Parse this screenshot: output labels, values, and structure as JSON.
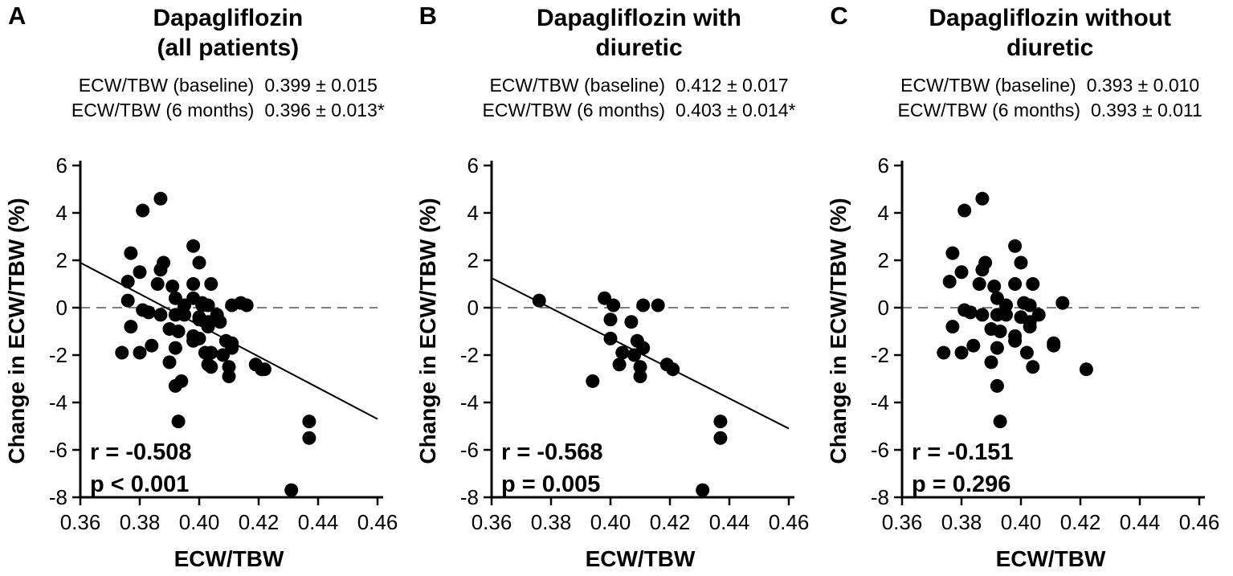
{
  "figure": {
    "background_color": "#ffffff",
    "foreground_color": "#000000",
    "zero_line_color": "#555555",
    "panels": [
      {
        "letter": "A",
        "title_lines": [
          "Dapagliflozin",
          "(all patients)"
        ],
        "stats": [
          {
            "label": "ECW/TBW (baseline)",
            "value": "0.399 ± 0.015"
          },
          {
            "label": "ECW/TBW (6 months)",
            "value": "0.396 ± 0.013*"
          }
        ]
      },
      {
        "letter": "B",
        "title_lines": [
          "Dapagliflozin with",
          "diuretic"
        ],
        "stats": [
          {
            "label": "ECW/TBW (baseline)",
            "value": "0.412 ± 0.017"
          },
          {
            "label": "ECW/TBW (6 months)",
            "value": "0.403 ± 0.014*"
          }
        ]
      },
      {
        "letter": "C",
        "title_lines": [
          "Dapagliflozin without",
          "diuretic"
        ],
        "stats": [
          {
            "label": "ECW/TBW (baseline)",
            "value": "0.393 ± 0.010"
          },
          {
            "label": "ECW/TBW (6 months)",
            "value": "0.393 ± 0.011"
          }
        ]
      }
    ]
  },
  "chart_data": [
    {
      "type": "scatter",
      "panel": "A",
      "title": "Dapagliflozin (all patients)",
      "xlabel": "ECW/TBW",
      "ylabel": "Change in ECW/TBW (%)",
      "xlim": [
        0.36,
        0.46
      ],
      "ylim": [
        -8,
        6
      ],
      "xticks": [
        0.36,
        0.38,
        0.4,
        0.42,
        0.44,
        0.46
      ],
      "xtick_labels": [
        "0.36",
        "0.38",
        "0.40",
        "0.42",
        "0.44",
        "0.46"
      ],
      "yticks": [
        6,
        4,
        2,
        0,
        -2,
        -4,
        -6,
        -8
      ],
      "ytick_labels": [
        "6",
        "4",
        "2",
        "0",
        "-2",
        "-4",
        "-6",
        "-8"
      ],
      "grid": false,
      "zero_dashed_line": true,
      "annotation": {
        "r": "r = -0.508",
        "p": "p < 0.001"
      },
      "regression_line": {
        "x": [
          0.36,
          0.46
        ],
        "y": [
          1.9,
          -4.7
        ]
      },
      "points": [
        [
          0.376,
          0.3
        ],
        [
          0.398,
          0.4
        ],
        [
          0.401,
          0.1
        ],
        [
          0.411,
          0.1
        ],
        [
          0.416,
          0.1
        ],
        [
          0.4,
          -0.5
        ],
        [
          0.407,
          -0.6
        ],
        [
          0.4,
          -1.3
        ],
        [
          0.409,
          -1.4
        ],
        [
          0.411,
          -1.7
        ],
        [
          0.404,
          -1.9
        ],
        [
          0.408,
          -2.0
        ],
        [
          0.403,
          -2.4
        ],
        [
          0.41,
          -2.5
        ],
        [
          0.41,
          -2.9
        ],
        [
          0.419,
          -2.4
        ],
        [
          0.421,
          -2.6
        ],
        [
          0.394,
          -3.1
        ],
        [
          0.437,
          -4.8
        ],
        [
          0.437,
          -5.5
        ],
        [
          0.431,
          -7.7
        ],
        [
          0.381,
          4.1
        ],
        [
          0.387,
          4.6
        ],
        [
          0.377,
          2.3
        ],
        [
          0.398,
          2.6
        ],
        [
          0.4,
          1.9
        ],
        [
          0.388,
          1.9
        ],
        [
          0.387,
          1.6
        ],
        [
          0.38,
          1.5
        ],
        [
          0.376,
          1.1
        ],
        [
          0.386,
          1.0
        ],
        [
          0.398,
          1.0
        ],
        [
          0.404,
          1.0
        ],
        [
          0.391,
          0.9
        ],
        [
          0.392,
          0.4
        ],
        [
          0.395,
          0.1
        ],
        [
          0.401,
          0.2
        ],
        [
          0.403,
          0.1
        ],
        [
          0.414,
          0.2
        ],
        [
          0.381,
          -0.1
        ],
        [
          0.383,
          -0.2
        ],
        [
          0.387,
          -0.3
        ],
        [
          0.392,
          -0.3
        ],
        [
          0.395,
          -0.3
        ],
        [
          0.406,
          -0.3
        ],
        [
          0.4,
          -0.4
        ],
        [
          0.403,
          -0.6
        ],
        [
          0.377,
          -0.8
        ],
        [
          0.403,
          -0.8
        ],
        [
          0.39,
          -0.9
        ],
        [
          0.393,
          -1.0
        ],
        [
          0.398,
          -1.2
        ],
        [
          0.411,
          -1.5
        ],
        [
          0.398,
          -1.4
        ],
        [
          0.392,
          -1.7
        ],
        [
          0.384,
          -1.6
        ],
        [
          0.411,
          -1.6
        ],
        [
          0.374,
          -1.9
        ],
        [
          0.38,
          -1.9
        ],
        [
          0.402,
          -1.9
        ],
        [
          0.39,
          -2.3
        ],
        [
          0.404,
          -2.5
        ],
        [
          0.422,
          -2.6
        ],
        [
          0.392,
          -3.3
        ],
        [
          0.393,
          -4.8
        ]
      ]
    },
    {
      "type": "scatter",
      "panel": "B",
      "title": "Dapagliflozin with diuretic",
      "xlabel": "ECW/TBW",
      "ylabel": "Change in ECW/TBW (%)",
      "xlim": [
        0.36,
        0.46
      ],
      "ylim": [
        -8,
        6
      ],
      "xticks": [
        0.36,
        0.38,
        0.4,
        0.42,
        0.44,
        0.46
      ],
      "xtick_labels": [
        "0.36",
        "0.38",
        "0.40",
        "0.42",
        "0.44",
        "0.46"
      ],
      "yticks": [
        6,
        4,
        2,
        0,
        -2,
        -4,
        -6,
        -8
      ],
      "ytick_labels": [
        "6",
        "4",
        "2",
        "0",
        "-2",
        "-4",
        "-6",
        "-8"
      ],
      "grid": false,
      "zero_dashed_line": true,
      "annotation": {
        "r": "r = -0.568",
        "p": "p = 0.005"
      },
      "regression_line": {
        "x": [
          0.36,
          0.46
        ],
        "y": [
          1.25,
          -5.1
        ]
      },
      "points": [
        [
          0.376,
          0.3
        ],
        [
          0.398,
          0.4
        ],
        [
          0.401,
          0.1
        ],
        [
          0.411,
          0.1
        ],
        [
          0.416,
          0.1
        ],
        [
          0.4,
          -0.5
        ],
        [
          0.407,
          -0.6
        ],
        [
          0.4,
          -1.3
        ],
        [
          0.409,
          -1.4
        ],
        [
          0.411,
          -1.7
        ],
        [
          0.404,
          -1.9
        ],
        [
          0.408,
          -2.0
        ],
        [
          0.403,
          -2.4
        ],
        [
          0.41,
          -2.5
        ],
        [
          0.41,
          -2.9
        ],
        [
          0.419,
          -2.4
        ],
        [
          0.421,
          -2.6
        ],
        [
          0.394,
          -3.1
        ],
        [
          0.437,
          -4.8
        ],
        [
          0.437,
          -5.5
        ],
        [
          0.431,
          -7.7
        ]
      ]
    },
    {
      "type": "scatter",
      "panel": "C",
      "title": "Dapagliflozin without diuretic",
      "xlabel": "ECW/TBW",
      "ylabel": "Change in ECW/TBW (%)",
      "xlim": [
        0.36,
        0.46
      ],
      "ylim": [
        -8,
        6
      ],
      "xticks": [
        0.36,
        0.38,
        0.4,
        0.42,
        0.44,
        0.46
      ],
      "xtick_labels": [
        "0.36",
        "0.38",
        "0.40",
        "0.42",
        "0.44",
        "0.46"
      ],
      "yticks": [
        6,
        4,
        2,
        0,
        -2,
        -4,
        -6,
        -8
      ],
      "ytick_labels": [
        "6",
        "4",
        "2",
        "0",
        "-2",
        "-4",
        "-6",
        "-8"
      ],
      "grid": false,
      "zero_dashed_line": true,
      "annotation": {
        "r": "r = -0.151",
        "p": "p = 0.296"
      },
      "regression_line": null,
      "points": [
        [
          0.381,
          4.1
        ],
        [
          0.387,
          4.6
        ],
        [
          0.377,
          2.3
        ],
        [
          0.398,
          2.6
        ],
        [
          0.4,
          1.9
        ],
        [
          0.388,
          1.9
        ],
        [
          0.387,
          1.6
        ],
        [
          0.38,
          1.5
        ],
        [
          0.376,
          1.1
        ],
        [
          0.386,
          1.0
        ],
        [
          0.398,
          1.0
        ],
        [
          0.404,
          1.0
        ],
        [
          0.391,
          0.9
        ],
        [
          0.392,
          0.4
        ],
        [
          0.395,
          0.1
        ],
        [
          0.401,
          0.2
        ],
        [
          0.403,
          0.1
        ],
        [
          0.414,
          0.2
        ],
        [
          0.381,
          -0.1
        ],
        [
          0.383,
          -0.2
        ],
        [
          0.387,
          -0.3
        ],
        [
          0.392,
          -0.3
        ],
        [
          0.395,
          -0.3
        ],
        [
          0.406,
          -0.3
        ],
        [
          0.4,
          -0.4
        ],
        [
          0.403,
          -0.6
        ],
        [
          0.377,
          -0.8
        ],
        [
          0.403,
          -0.8
        ],
        [
          0.39,
          -0.9
        ],
        [
          0.393,
          -1.0
        ],
        [
          0.398,
          -1.2
        ],
        [
          0.411,
          -1.5
        ],
        [
          0.398,
          -1.4
        ],
        [
          0.392,
          -1.7
        ],
        [
          0.384,
          -1.6
        ],
        [
          0.411,
          -1.6
        ],
        [
          0.374,
          -1.9
        ],
        [
          0.38,
          -1.9
        ],
        [
          0.402,
          -1.9
        ],
        [
          0.39,
          -2.3
        ],
        [
          0.404,
          -2.5
        ],
        [
          0.422,
          -2.6
        ],
        [
          0.392,
          -3.3
        ],
        [
          0.393,
          -4.8
        ]
      ]
    }
  ]
}
